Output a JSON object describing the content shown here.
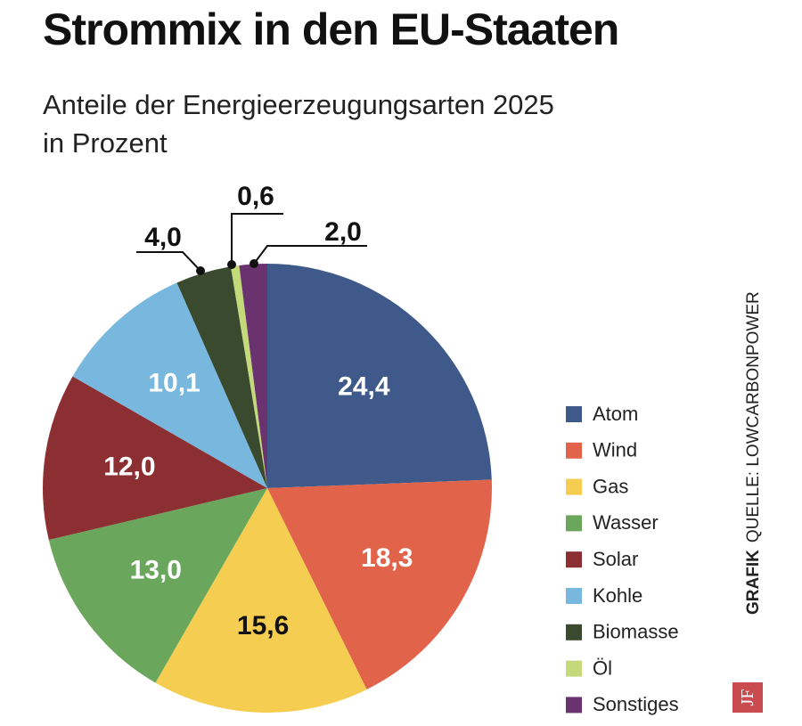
{
  "chart_data": {
    "type": "pie",
    "title": "Strommix in den EU-Staaten",
    "subtitle": [
      "Anteile der Energieerzeugungsarten 2025",
      "in Prozent"
    ],
    "legend_position": "right",
    "start": "top, clockwise",
    "slices": [
      {
        "name": "Atom",
        "value": 24.4,
        "label": "24,4",
        "color": "#3f5a8a"
      },
      {
        "name": "Wind",
        "value": 18.3,
        "label": "18,3",
        "color": "#e0634a"
      },
      {
        "name": "Gas",
        "value": 15.6,
        "label": "15,6",
        "color": "#f5cd50"
      },
      {
        "name": "Wasser",
        "value": 13.0,
        "label": "13,0",
        "color": "#6aa75d"
      },
      {
        "name": "Solar",
        "value": 12.0,
        "label": "12,0",
        "color": "#8b2f32"
      },
      {
        "name": "Kohle",
        "value": 10.1,
        "label": "10,1",
        "color": "#79b8de"
      },
      {
        "name": "Biomasse",
        "value": 4.0,
        "label": "4,0",
        "color": "#3a4a2e"
      },
      {
        "name": "Öl",
        "value": 0.6,
        "label": "0,6",
        "color": "#c3d97a"
      },
      {
        "name": "Sonstiges",
        "value": 2.0,
        "label": "2,0",
        "color": "#6a3370"
      }
    ]
  },
  "source": {
    "grafik": "GRAFIK",
    "text": "QUELLE: LOWCARBONPOWER"
  },
  "logo": "JF"
}
